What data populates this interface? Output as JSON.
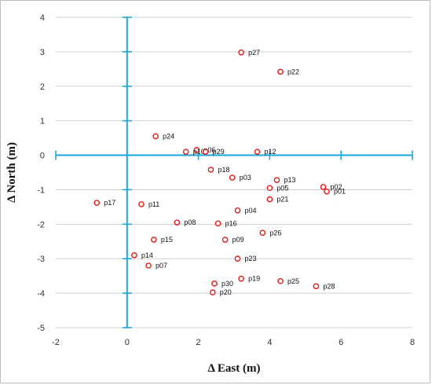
{
  "chart_data": {
    "type": "scatter",
    "title": "",
    "xlabel": "Δ East (m)",
    "ylabel": "Δ North (m)",
    "xlim": [
      -2,
      8
    ],
    "ylim": [
      -5,
      4
    ],
    "x_ticks": [
      "-2",
      "0",
      "2",
      "4",
      "6",
      "8"
    ],
    "y_ticks": [
      "4",
      "3",
      "2",
      "1",
      "0",
      "-1",
      "-2",
      "-3",
      "-4",
      "-5"
    ],
    "grid": "horizontal",
    "colors": {
      "grid": "#d0d0d0",
      "axis": "#1aa7d9",
      "marker": "#e41b17"
    },
    "points": [
      {
        "label": "p01",
        "x": 5.6,
        "y": -1.05
      },
      {
        "label": "p02",
        "x": 5.5,
        "y": -0.92
      },
      {
        "label": "p03",
        "x": 2.95,
        "y": -0.65
      },
      {
        "label": "p04",
        "x": 3.1,
        "y": -1.6
      },
      {
        "label": "p05",
        "x": 4.0,
        "y": -0.95
      },
      {
        "label": "p06",
        "x": 1.95,
        "y": 0.15
      },
      {
        "label": "p07",
        "x": 0.6,
        "y": -3.2
      },
      {
        "label": "p08",
        "x": 1.4,
        "y": -1.95
      },
      {
        "label": "p09",
        "x": 2.75,
        "y": -2.45
      },
      {
        "label": "p10",
        "x": 1.65,
        "y": 0.1
      },
      {
        "label": "p11",
        "x": 0.4,
        "y": -1.42
      },
      {
        "label": "p12",
        "x": 3.65,
        "y": 0.1
      },
      {
        "label": "p13",
        "x": 4.2,
        "y": -0.72
      },
      {
        "label": "p14",
        "x": 0.2,
        "y": -2.9
      },
      {
        "label": "p15",
        "x": 0.75,
        "y": -2.45
      },
      {
        "label": "p16",
        "x": 2.55,
        "y": -1.98
      },
      {
        "label": "p17",
        "x": -0.85,
        "y": -1.38
      },
      {
        "label": "p18",
        "x": 2.35,
        "y": -0.42
      },
      {
        "label": "p19",
        "x": 3.2,
        "y": -3.58
      },
      {
        "label": "p20",
        "x": 2.4,
        "y": -3.98
      },
      {
        "label": "p21",
        "x": 4.0,
        "y": -1.28
      },
      {
        "label": "p22",
        "x": 4.3,
        "y": 2.42
      },
      {
        "label": "p23",
        "x": 3.1,
        "y": -3.0
      },
      {
        "label": "p24",
        "x": 0.8,
        "y": 0.55
      },
      {
        "label": "p25",
        "x": 4.3,
        "y": -3.65
      },
      {
        "label": "p26",
        "x": 3.8,
        "y": -2.25
      },
      {
        "label": "p27",
        "x": 3.2,
        "y": 2.98
      },
      {
        "label": "p28",
        "x": 5.3,
        "y": -3.8
      },
      {
        "label": "p29",
        "x": 2.2,
        "y": 0.1
      },
      {
        "label": "p30",
        "x": 2.45,
        "y": -3.72
      }
    ]
  }
}
